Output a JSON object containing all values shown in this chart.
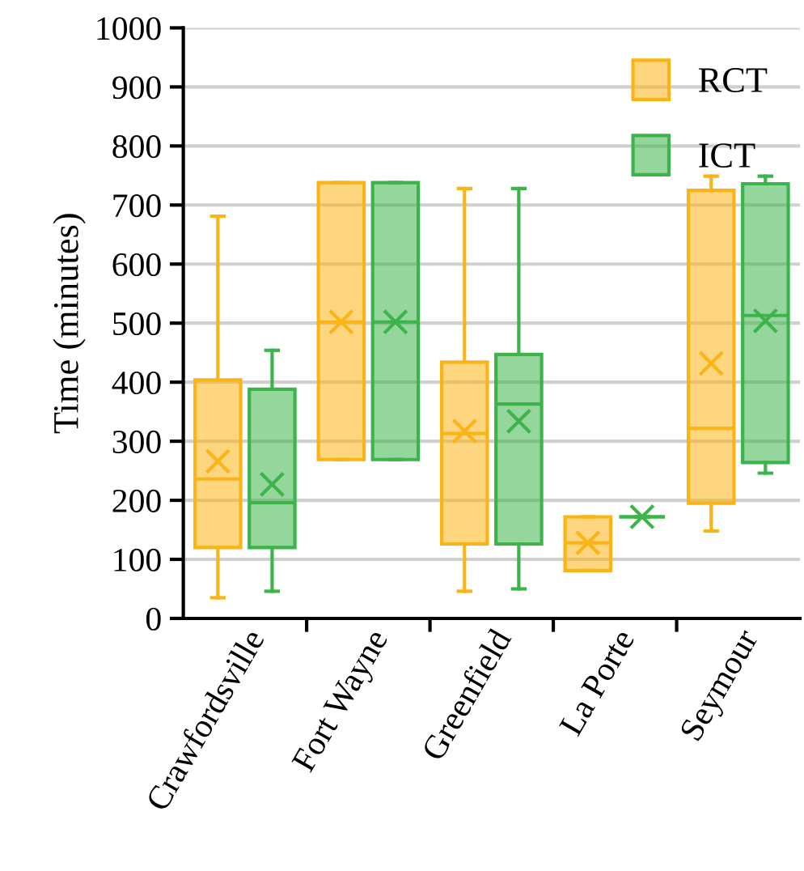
{
  "chart_data": {
    "type": "box",
    "ylabel": "Time (minutes)",
    "categories": [
      "Crawfordsville",
      "Fort Wayne",
      "Greenfield",
      "La Porte",
      "Seymour"
    ],
    "ylim": [
      0,
      1000
    ],
    "yticks": [
      0,
      100,
      200,
      300,
      400,
      500,
      600,
      700,
      800,
      900,
      1000
    ],
    "grid": "y",
    "legend": "top right",
    "marker": "cross",
    "series": [
      {
        "name": "RCT",
        "color": "#fbb416",
        "boxes": [
          {
            "low": 35,
            "q1": 120,
            "median": 236,
            "q3": 404,
            "high": 681,
            "mean": 266
          },
          {
            "low": 269,
            "q1": 269,
            "median": 502,
            "q3": 738,
            "high": 738,
            "mean": 502
          },
          {
            "low": 46,
            "q1": 126,
            "median": 313,
            "q3": 434,
            "high": 728,
            "mean": 317
          },
          {
            "low": 81,
            "q1": 81,
            "median": 128,
            "q3": 172,
            "high": 172,
            "mean": 128
          },
          {
            "low": 148,
            "q1": 195,
            "median": 322,
            "q3": 725,
            "high": 749,
            "mean": 432
          }
        ]
      },
      {
        "name": "ICT",
        "color": "#3cb44b",
        "boxes": [
          {
            "low": 46,
            "q1": 120,
            "median": 196,
            "q3": 388,
            "high": 454,
            "mean": 227
          },
          {
            "low": 269,
            "q1": 269,
            "median": 502,
            "q3": 738,
            "high": 738,
            "mean": 502
          },
          {
            "low": 50,
            "q1": 126,
            "median": 363,
            "q3": 447,
            "high": 728,
            "mean": 334
          },
          {
            "low": 172,
            "q1": 172,
            "median": 172,
            "q3": 172,
            "high": 172,
            "mean": 172
          },
          {
            "low": 246,
            "q1": 264,
            "median": 513,
            "q3": 736,
            "high": 749,
            "mean": 504
          }
        ]
      }
    ]
  }
}
